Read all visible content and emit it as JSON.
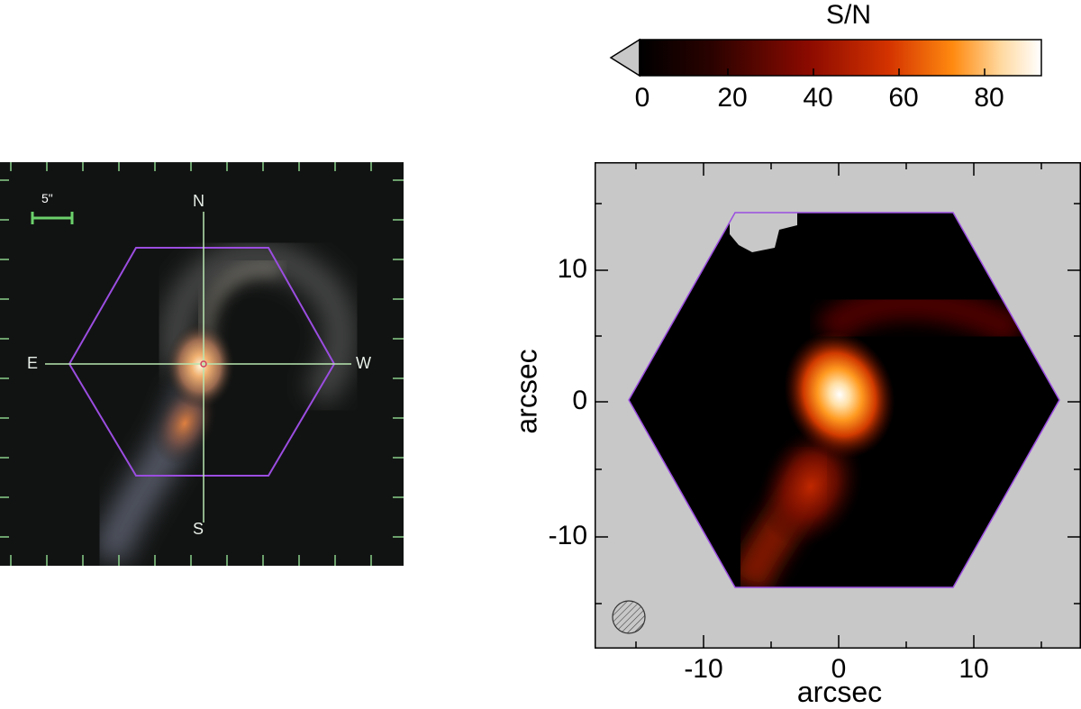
{
  "colorbar": {
    "title": "S/N",
    "ticks": [
      0,
      20,
      40,
      60,
      80
    ],
    "range": [
      0,
      95
    ],
    "colormap": [
      "#000000",
      "#3a0300",
      "#8b0a00",
      "#d43300",
      "#ff8a10",
      "#ffd9a0",
      "#ffffff"
    ],
    "under_color": "#c8c8c8"
  },
  "optical_image": {
    "scale_bar_label": "5\"",
    "compass": {
      "north": "N",
      "south": "S",
      "east": "E",
      "west": "W"
    },
    "hexagon_color": "#9b4de0",
    "crosshair_color": "#b8e6b0",
    "tick_color": "#8ad08a"
  },
  "sn_map": {
    "xlabel": "arcsec",
    "ylabel": "arcsec",
    "x_ticks": [
      "-10",
      "0",
      "10"
    ],
    "y_ticks": [
      "10",
      "0",
      "-10"
    ],
    "xlim": [
      -19,
      17
    ],
    "ylim": [
      -18,
      17
    ],
    "background_color": "#c8c8c8",
    "hexagon_color": "#9b4de0",
    "beam_icon": "hatched-circle-icon"
  }
}
